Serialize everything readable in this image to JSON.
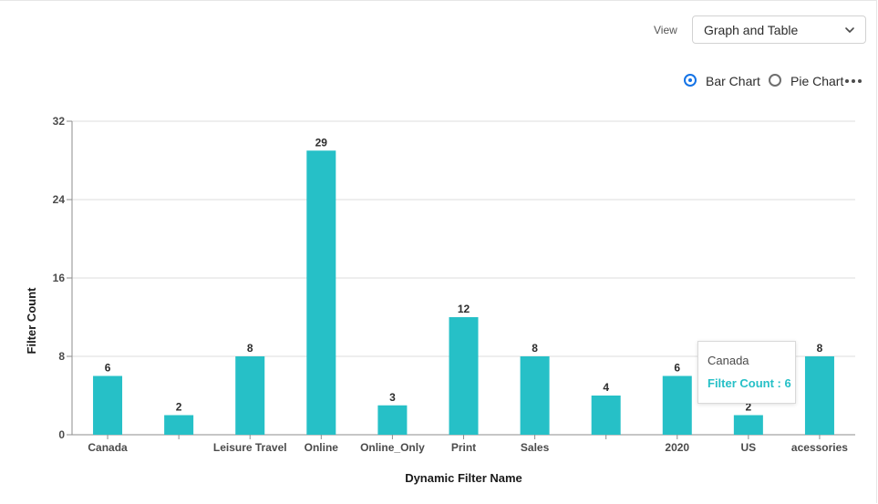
{
  "controls": {
    "view_label": "View",
    "view_selected": "Graph and Table",
    "chart_type_options": [
      {
        "label": "Bar Chart",
        "selected": true
      },
      {
        "label": "Pie Chart",
        "selected": false
      }
    ],
    "more_icon": "more-horizontal-icon",
    "chevron_icon": "chevron-down-icon"
  },
  "colors": {
    "bar": "#26c0c7",
    "accent": "#1473e6",
    "grid": "#dcdcdc"
  },
  "chart_data": {
    "type": "bar",
    "categories": [
      "Canada",
      "",
      "Leisure Travel",
      "Online",
      "Online_Only",
      "Print",
      "Sales",
      "",
      "2020",
      "US",
      "acessories"
    ],
    "values": [
      6,
      2,
      8,
      29,
      3,
      12,
      8,
      4,
      6,
      2,
      8
    ],
    "xlabel": "Dynamic Filter Name",
    "ylabel": "Filter Count",
    "ylim": [
      0,
      32
    ],
    "yticks": [
      0,
      8,
      16,
      24,
      32
    ],
    "grid": true,
    "data_labels": true
  },
  "tooltip": {
    "title": "Canada",
    "value_text": "Filter Count : 6"
  }
}
